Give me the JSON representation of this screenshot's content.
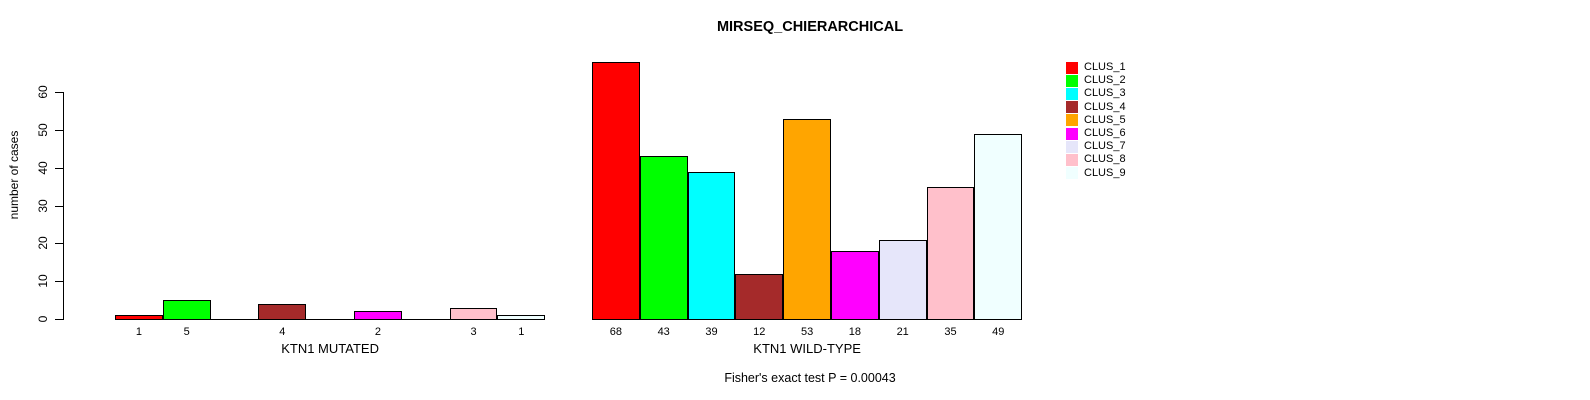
{
  "chart_data": {
    "type": "bar",
    "title": "MIRSEQ_CHIERARCHICAL",
    "ylabel": "number of cases",
    "xlabel": "",
    "ylim": [
      0,
      60
    ],
    "yticks": [
      0,
      10,
      20,
      30,
      40,
      50,
      60
    ],
    "categories": [
      "CLUS_1",
      "CLUS_2",
      "CLUS_3",
      "CLUS_4",
      "CLUS_5",
      "CLUS_6",
      "CLUS_7",
      "CLUS_8",
      "CLUS_9"
    ],
    "colors": [
      "#FF0000",
      "#00FF00",
      "#00FFFF",
      "#A52A2A",
      "#FFA500",
      "#FF00FF",
      "#E6E6FA",
      "#FFC0CB",
      "#F0FFFF"
    ],
    "series": [
      {
        "name": "KTN1 MUTATED",
        "values": [
          1,
          5,
          0,
          4,
          0,
          2,
          0,
          3,
          1
        ]
      },
      {
        "name": "KTN1 WILD-TYPE",
        "values": [
          68,
          43,
          39,
          12,
          53,
          18,
          21,
          35,
          49
        ]
      }
    ],
    "legend": {
      "position": "right",
      "entries": [
        "CLUS_1",
        "CLUS_2",
        "CLUS_3",
        "CLUS_4",
        "CLUS_5",
        "CLUS_6",
        "CLUS_7",
        "CLUS_8",
        "CLUS_9"
      ]
    },
    "grid": false,
    "footnote": "Fisher's exact test P = 0.00043"
  }
}
